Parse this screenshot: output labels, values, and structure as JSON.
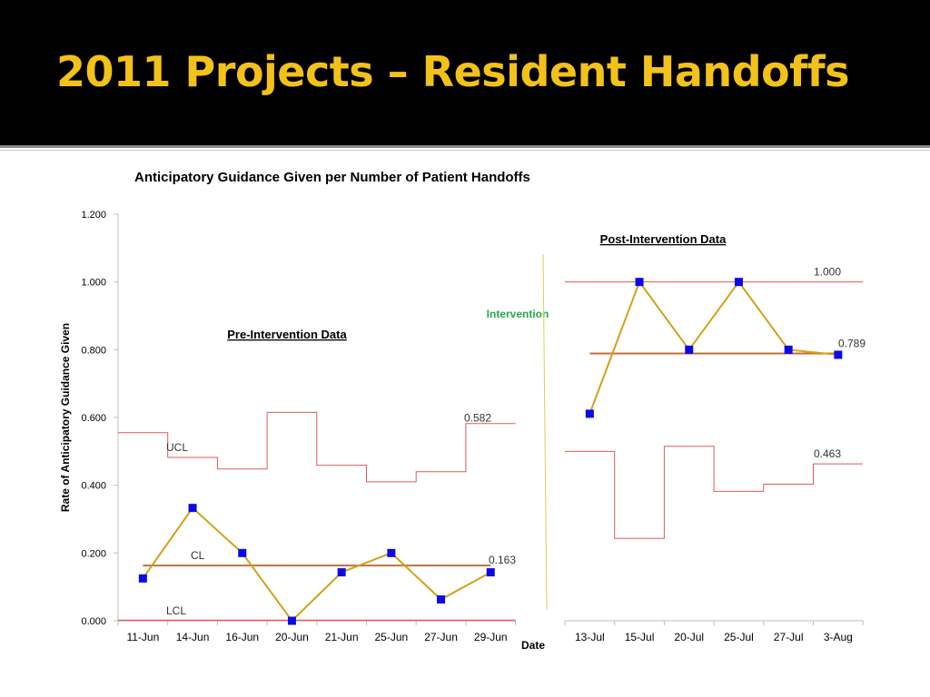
{
  "slide": {
    "title": "2011 Projects – Resident Handoffs",
    "title_color": "#f2c21b",
    "background": "#000000"
  },
  "chart_data": {
    "type": "line",
    "title": "Anticipatory Guidance Given per Number of Patient Handoffs",
    "xlabel": "Date",
    "ylabel": "Rate of Anticipatory Guidance Given",
    "ylim": [
      0,
      1.2
    ],
    "yticks": [
      "0.000",
      "0.200",
      "0.400",
      "0.600",
      "0.800",
      "1.000",
      "1.200"
    ],
    "grid": false,
    "phases": [
      {
        "label": "Pre-Intervention Data",
        "categories": [
          "11-Jun",
          "14-Jun",
          "16-Jun",
          "20-Jun",
          "21-Jun",
          "25-Jun",
          "27-Jun",
          "29-Jun"
        ],
        "values": [
          0.125,
          0.333,
          0.2,
          0.0,
          0.143,
          0.2,
          0.063,
          0.143
        ],
        "ucl": [
          0.555,
          0.482,
          0.448,
          0.615,
          0.459,
          0.41,
          0.44,
          0.582
        ],
        "cl": 0.163,
        "lcl": 0.0,
        "ucl_label": "0.582",
        "cl_label": "0.163"
      },
      {
        "label": "Post-Intervention Data",
        "categories": [
          "13-Jul",
          "15-Jul",
          "20-Jul",
          "25-Jul",
          "27-Jul",
          "3-Aug"
        ],
        "values": [
          0.611,
          1.0,
          0.8,
          1.0,
          0.8,
          0.785
        ],
        "ucl": [
          1.0,
          1.0,
          1.0,
          1.0,
          1.0,
          1.0
        ],
        "lcl": [
          0.5,
          0.243,
          0.515,
          0.382,
          0.403,
          0.463
        ],
        "cl": 0.789,
        "ucl_label": "1.000",
        "cl_label": "0.789",
        "lcl_label": "0.463"
      }
    ],
    "annotations": {
      "ucl": "UCL",
      "cl": "CL",
      "lcl": "LCL",
      "intervention": "Intervention"
    },
    "colors": {
      "data_line": "#d4a017",
      "marker": "#0a0ae6",
      "limits": "#e05a5a",
      "center_line": "#c0703a",
      "intervention_text": "#2aa84a",
      "intervention_line": "#e0d050"
    }
  }
}
